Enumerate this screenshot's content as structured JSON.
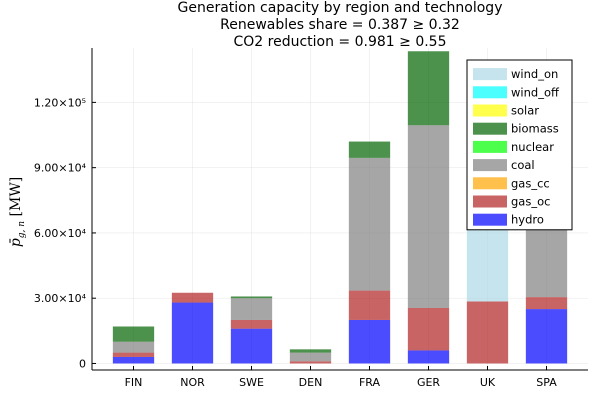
{
  "chart_data": {
    "type": "bar",
    "stacked": true,
    "title_lines": [
      "Generation capacity by region and technology",
      "Renewables share = 0.387 ≥ 0.32",
      "CO2 reduction = 0.981 ≥ 0.55"
    ],
    "xlabel": "",
    "ylabel": "p̄_{g,n} [MW]",
    "ylim": [
      -3000,
      145000
    ],
    "grid": true,
    "legend_position": "top-right",
    "categories": [
      "FIN",
      "NOR",
      "SWE",
      "DEN",
      "FRA",
      "GER",
      "UK",
      "SPA"
    ],
    "yticks": [
      0,
      30000,
      60000,
      90000,
      120000
    ],
    "ytick_labels": [
      "0",
      "3.00×10⁴",
      "6.00×10⁴",
      "9.00×10⁴",
      "1.20×10⁵"
    ],
    "series": [
      {
        "name": "hydro",
        "color": "#0000ff",
        "values": [
          3000,
          28000,
          16000,
          0,
          20000,
          6000,
          0,
          25000
        ]
      },
      {
        "name": "gas_oc",
        "color": "#b22222",
        "values": [
          2000,
          4500,
          4000,
          1000,
          13500,
          19500,
          28500,
          5500
        ]
      },
      {
        "name": "gas_cc",
        "color": "#ffa500",
        "values": [
          0,
          0,
          0,
          0,
          0,
          0,
          0,
          0
        ]
      },
      {
        "name": "coal",
        "color": "#808080",
        "values": [
          5000,
          0,
          10000,
          4000,
          61000,
          84000,
          0,
          39000
        ]
      },
      {
        "name": "nuclear",
        "color": "#00ff00",
        "values": [
          0,
          0,
          0,
          0,
          0,
          0,
          0,
          0
        ]
      },
      {
        "name": "biomass",
        "color": "#006400",
        "values": [
          7000,
          0,
          800,
          1500,
          7500,
          34000,
          0,
          2500
        ]
      },
      {
        "name": "solar",
        "color": "#ffff00",
        "values": [
          0,
          0,
          0,
          0,
          0,
          0,
          0,
          0
        ]
      },
      {
        "name": "wind_off",
        "color": "#00ffff",
        "values": [
          0,
          0,
          0,
          0,
          0,
          0,
          0,
          0
        ]
      },
      {
        "name": "wind_on",
        "color": "#add8e6",
        "values": [
          0,
          0,
          0,
          0,
          0,
          0,
          70000,
          0
        ]
      }
    ],
    "legend_order": [
      "wind_on",
      "wind_off",
      "solar",
      "biomass",
      "nuclear",
      "coal",
      "gas_cc",
      "gas_oc",
      "hydro"
    ]
  }
}
